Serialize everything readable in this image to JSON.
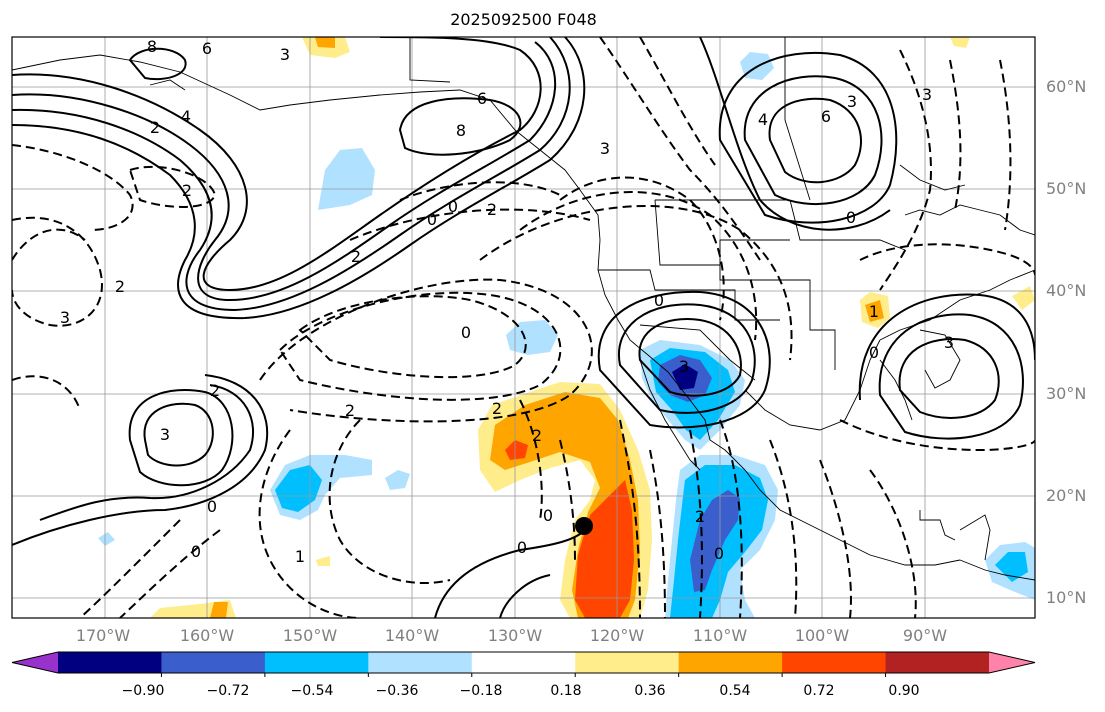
{
  "title": "2025092500 F048",
  "lon_labels": [
    "170°W",
    "160°W",
    "150°W",
    "140°W",
    "130°W",
    "120°W",
    "110°W",
    "100°W",
    "90°W"
  ],
  "lat_labels": [
    "60°N",
    "50°N",
    "40°N",
    "30°N",
    "20°N",
    "10°N"
  ],
  "colorbar": {
    "ticks": [
      "−0.90",
      "−0.72",
      "−0.54",
      "−0.36",
      "−0.18",
      "0.18",
      "0.36",
      "0.54",
      "0.72",
      "0.90"
    ],
    "colors": [
      "#9932cc",
      "#000080",
      "#3a5fcd",
      "#00bfff",
      "#b0e2ff",
      "#ffffff",
      "#ffec8b",
      "#ffa500",
      "#ff4500",
      "#b22222",
      "#ff82ab"
    ]
  },
  "contour_labels": [
    {
      "text": "6"
    },
    {
      "text": "8"
    },
    {
      "text": "3"
    },
    {
      "text": "4"
    },
    {
      "text": "2"
    },
    {
      "text": "2"
    },
    {
      "text": "8"
    },
    {
      "text": "6"
    },
    {
      "text": "3"
    },
    {
      "text": "2"
    },
    {
      "text": "0"
    },
    {
      "text": "0"
    },
    {
      "text": "2"
    },
    {
      "text": "3"
    },
    {
      "text": "4"
    },
    {
      "text": "6"
    },
    {
      "text": "3"
    },
    {
      "text": "0"
    },
    {
      "text": "0"
    },
    {
      "text": "3"
    },
    {
      "text": "2"
    },
    {
      "text": "3"
    },
    {
      "text": "2"
    },
    {
      "text": "0"
    },
    {
      "text": "0"
    },
    {
      "text": "1"
    },
    {
      "text": "2"
    },
    {
      "text": "2"
    },
    {
      "text": "0"
    },
    {
      "text": "0"
    },
    {
      "text": "2"
    },
    {
      "text": "0"
    },
    {
      "text": "0"
    },
    {
      "text": "3"
    },
    {
      "text": "1"
    },
    {
      "text": "0"
    },
    {
      "text": "3"
    },
    {
      "text": "2"
    }
  ]
}
